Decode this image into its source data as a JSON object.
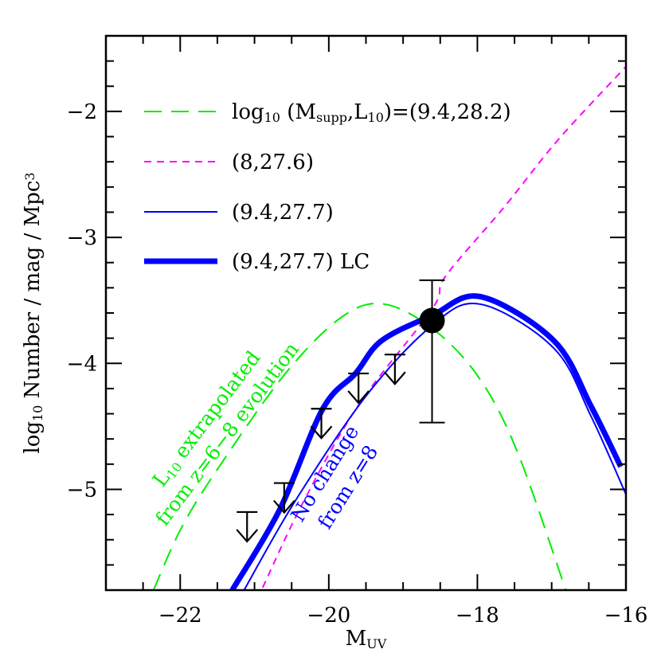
{
  "chart_data": {
    "type": "line",
    "title": "",
    "xlabel": {
      "main": "M",
      "sub": "UV"
    },
    "ylabel": {
      "parts": [
        {
          "t": "log"
        },
        {
          "t": "10",
          "sub": true
        },
        {
          "t": " Number / mag / Mpc"
        },
        {
          "t": "3",
          "sup": true
        }
      ]
    },
    "xlim": [
      -23,
      -16
    ],
    "ylim": [
      -5.8,
      -1.4
    ],
    "x_ticks": [
      -22,
      -20,
      -18,
      -16
    ],
    "x_tick_labels": [
      "−22",
      "−20",
      "−18",
      "−16"
    ],
    "y_ticks": [
      -2,
      -3,
      -4,
      -5
    ],
    "y_tick_labels": [
      "−2",
      "−3",
      "−4",
      "−5"
    ],
    "grid": false,
    "legend_placement": "top-left",
    "series": [
      {
        "name": "log10 (Msupp,L10)=(9.4,28.2)",
        "label_parts": [
          {
            "t": "log"
          },
          {
            "t": "10",
            "sub": true
          },
          {
            "t": " (M"
          },
          {
            "t": "supp",
            "sub": true
          },
          {
            "t": ",L"
          },
          {
            "t": "10",
            "sub": true
          },
          {
            "t": ")=(9.4,28.2)"
          }
        ],
        "color": "#00ee00",
        "style": "long-dash",
        "x": [
          -22.36,
          -21.97,
          -21.43,
          -20.57,
          -19.82,
          -19.25,
          -18.57,
          -17.96,
          -17.45,
          -16.81
        ],
        "y": [
          -5.8,
          -5.29,
          -4.78,
          -4.07,
          -3.63,
          -3.53,
          -3.74,
          -4.13,
          -4.72,
          -5.8
        ]
      },
      {
        "name": "(8,27.6)",
        "label_parts": [
          {
            "t": "(8,27.6)"
          }
        ],
        "color": "#ff00ff",
        "style": "short-dash",
        "x": [
          -20.89,
          -20.36,
          -19.61,
          -18.61,
          -18.43,
          -17.64,
          -16.92,
          -16.01
        ],
        "y": [
          -5.78,
          -5.12,
          -4.34,
          -3.57,
          -3.31,
          -2.76,
          -2.23,
          -1.65
        ]
      },
      {
        "name": "(9.4,27.7)",
        "label_parts": [
          {
            "t": "(9.4,27.7)"
          }
        ],
        "color": "#0000ff",
        "style": "thin-solid",
        "x": [
          -21.14,
          -20.46,
          -19.5,
          -18.61,
          -17.96,
          -16.97,
          -16.47,
          -16.0
        ],
        "y": [
          -5.8,
          -5.1,
          -4.26,
          -3.7,
          -3.53,
          -3.88,
          -4.42,
          -5.04
        ]
      },
      {
        "name": "(9.4,27.7) LC",
        "label_parts": [
          {
            "t": "(9.4,27.7)  LC"
          }
        ],
        "color": "#0000ff",
        "style": "thick-solid",
        "x": [
          -21.3,
          -20.66,
          -20.08,
          -19.64,
          -19.29,
          -18.61,
          -17.96,
          -16.97,
          -16.47,
          -16.07
        ],
        "y": [
          -5.8,
          -5.16,
          -4.36,
          -4.08,
          -3.82,
          -3.62,
          -3.47,
          -3.82,
          -4.34,
          -4.82
        ]
      }
    ],
    "detection": {
      "x": -18.61,
      "y": -3.66,
      "y_err_high": -3.34,
      "y_err_low": -4.47,
      "color": "#000000"
    },
    "upper_limits": {
      "x": [
        -21.1,
        -20.6,
        -20.1,
        -19.6,
        -19.11
      ],
      "y": [
        -5.18,
        -4.95,
        -4.36,
        -4.08,
        -3.93
      ],
      "color": "#000000"
    },
    "annotations": [
      {
        "lines": [
          [
            {
              "t": "L"
            },
            {
              "t": "10",
              "sub": true
            },
            {
              "t": " extrapolated"
            }
          ],
          [
            {
              "t": "from z=6−8 evolution"
            }
          ]
        ],
        "color": "#00ee00"
      },
      {
        "lines": [
          [
            {
              "t": "No change"
            }
          ],
          [
            {
              "t": "from z=8"
            }
          ]
        ],
        "color": "#0000ff"
      }
    ]
  }
}
